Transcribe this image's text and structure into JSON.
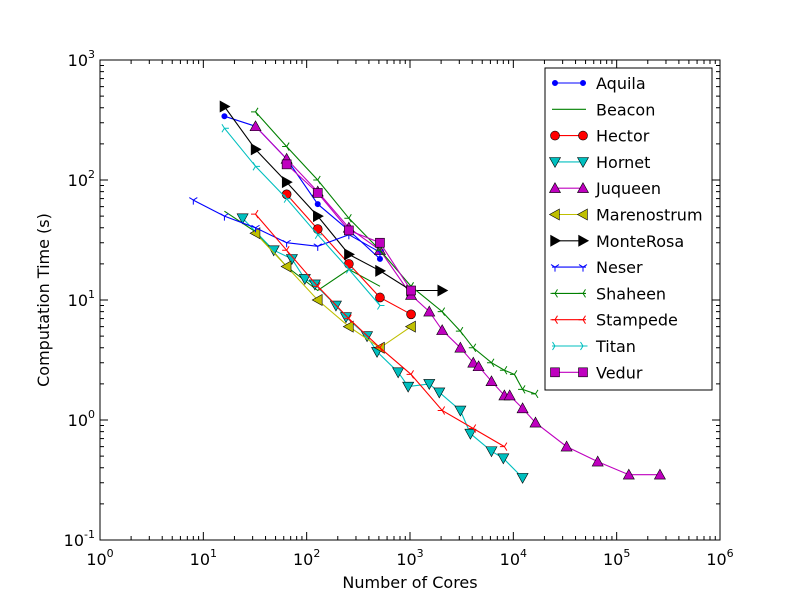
{
  "chart_data": {
    "type": "line",
    "scale": "log-log",
    "xlabel": "Number of Cores",
    "ylabel": "Computation Time (s)",
    "xlim": [
      1,
      1000000
    ],
    "ylim": [
      0.1,
      1000
    ],
    "x_ticks": [
      {
        "value": 1,
        "mantissa": "10",
        "exp": "0"
      },
      {
        "value": 10,
        "mantissa": "10",
        "exp": "1"
      },
      {
        "value": 100,
        "mantissa": "10",
        "exp": "2"
      },
      {
        "value": 1000,
        "mantissa": "10",
        "exp": "3"
      },
      {
        "value": 10000,
        "mantissa": "10",
        "exp": "4"
      },
      {
        "value": 100000,
        "mantissa": "10",
        "exp": "5"
      },
      {
        "value": 1000000,
        "mantissa": "10",
        "exp": "6"
      }
    ],
    "y_ticks": [
      {
        "value": 0.1,
        "mantissa": "10",
        "exp": "-1"
      },
      {
        "value": 1,
        "mantissa": "10",
        "exp": "0"
      },
      {
        "value": 10,
        "mantissa": "10",
        "exp": "1"
      },
      {
        "value": 100,
        "mantissa": "10",
        "exp": "2"
      },
      {
        "value": 1000,
        "mantissa": "10",
        "exp": "3"
      }
    ],
    "legend_position": "top-right",
    "series": [
      {
        "name": "Aquila",
        "color": "#0000ff",
        "marker": "dot",
        "x": [
          16,
          32,
          64,
          128,
          256,
          512
        ],
        "y": [
          340,
          280,
          150,
          63,
          38,
          22
        ]
      },
      {
        "name": "Beacon",
        "color": "#008000",
        "marker": "none",
        "x": [
          16,
          32,
          64,
          128,
          256,
          512
        ],
        "y": [
          55,
          37,
          19,
          12,
          18,
          13
        ]
      },
      {
        "name": "Hector",
        "color": "#ff0000",
        "marker": "circle",
        "x": [
          64,
          128,
          256,
          512,
          1024
        ],
        "y": [
          76,
          39,
          20,
          10.5,
          7.6
        ]
      },
      {
        "name": "Hornet",
        "color": "#00bfbf",
        "marker": "triangle-down",
        "x": [
          24,
          48,
          96,
          192,
          384,
          768,
          1536,
          3072,
          6144,
          12288,
          24,
          48,
          72,
          120,
          240,
          480,
          960,
          1920,
          3840
        ],
        "y": [
          48,
          26,
          15,
          9,
          5,
          2.5,
          2,
          1.2,
          0.55,
          0.33,
          48,
          26,
          22,
          13.5,
          7.2,
          3.7,
          1.9,
          1.7,
          0.77
        ],
        "x_main": [
          24,
          48,
          72,
          96,
          120,
          192,
          240,
          384,
          480,
          768,
          960,
          1536,
          1920,
          3072,
          3840,
          6144,
          8000,
          12288
        ],
        "y_main": [
          48,
          26,
          22,
          15,
          13.5,
          9,
          7.2,
          5,
          3.7,
          2.5,
          1.9,
          2.0,
          1.7,
          1.2,
          0.77,
          0.55,
          0.48,
          0.33
        ]
      },
      {
        "name": "Juqueen",
        "color": "#bf00bf",
        "marker": "triangle-up",
        "x": [
          32,
          64,
          128,
          256,
          512,
          1024,
          1536,
          2048,
          3072,
          4096,
          4608,
          6144,
          8192,
          9216,
          12288,
          16384,
          32768,
          65536,
          131072,
          262144
        ],
        "y": [
          280,
          150,
          80,
          40,
          26,
          11,
          8,
          5.6,
          4,
          3,
          2.8,
          2.1,
          1.6,
          1.6,
          1.25,
          0.95,
          0.6,
          0.45,
          0.35,
          0.35
        ]
      },
      {
        "name": "Marenostrum",
        "color": "#bfbf00",
        "marker": "triangle-left",
        "x": [
          32,
          64,
          128,
          256,
          512,
          1024
        ],
        "y": [
          36,
          19,
          10,
          6,
          4,
          6
        ]
      },
      {
        "name": "MonteRosa",
        "color": "#000000",
        "marker": "triangle-right",
        "x": [
          16,
          32,
          64,
          128,
          256,
          512,
          1024,
          2048
        ],
        "y": [
          410,
          180,
          96,
          50,
          24,
          17.5,
          12,
          12
        ]
      },
      {
        "name": "Neser",
        "color": "#0000ff",
        "marker": "tri-down",
        "x": [
          8,
          16,
          32,
          64,
          128,
          256,
          512
        ],
        "y": [
          68,
          50,
          40,
          30,
          28,
          35,
          25
        ]
      },
      {
        "name": "Shaheen",
        "color": "#008000",
        "marker": "tri-left",
        "x": [
          32,
          64,
          128,
          256,
          512,
          1024,
          2048,
          3072,
          4096,
          6144,
          8192,
          10240,
          12288,
          16384
        ],
        "y": [
          370,
          190,
          100,
          48,
          26,
          13,
          8,
          5.5,
          4,
          3,
          2.6,
          2.4,
          1.8,
          1.65
        ]
      },
      {
        "name": "Stampede",
        "color": "#ff0000",
        "marker": "tri-left",
        "x": [
          32,
          64,
          128,
          256,
          512,
          1024,
          2048,
          4096,
          8192
        ],
        "y": [
          52,
          26,
          13,
          7,
          4,
          2.4,
          1.2,
          0.85,
          0.6
        ]
      },
      {
        "name": "Titan",
        "color": "#00bfbf",
        "marker": "tri-right",
        "x": [
          16,
          32,
          64,
          128,
          256,
          512
        ],
        "y": [
          270,
          130,
          70,
          35,
          18,
          9
        ]
      },
      {
        "name": "Vedur",
        "color": "#bf00bf",
        "marker": "square",
        "x": [
          64,
          128,
          256,
          512,
          1024
        ],
        "y": [
          135,
          78,
          38,
          30,
          12
        ]
      }
    ]
  }
}
